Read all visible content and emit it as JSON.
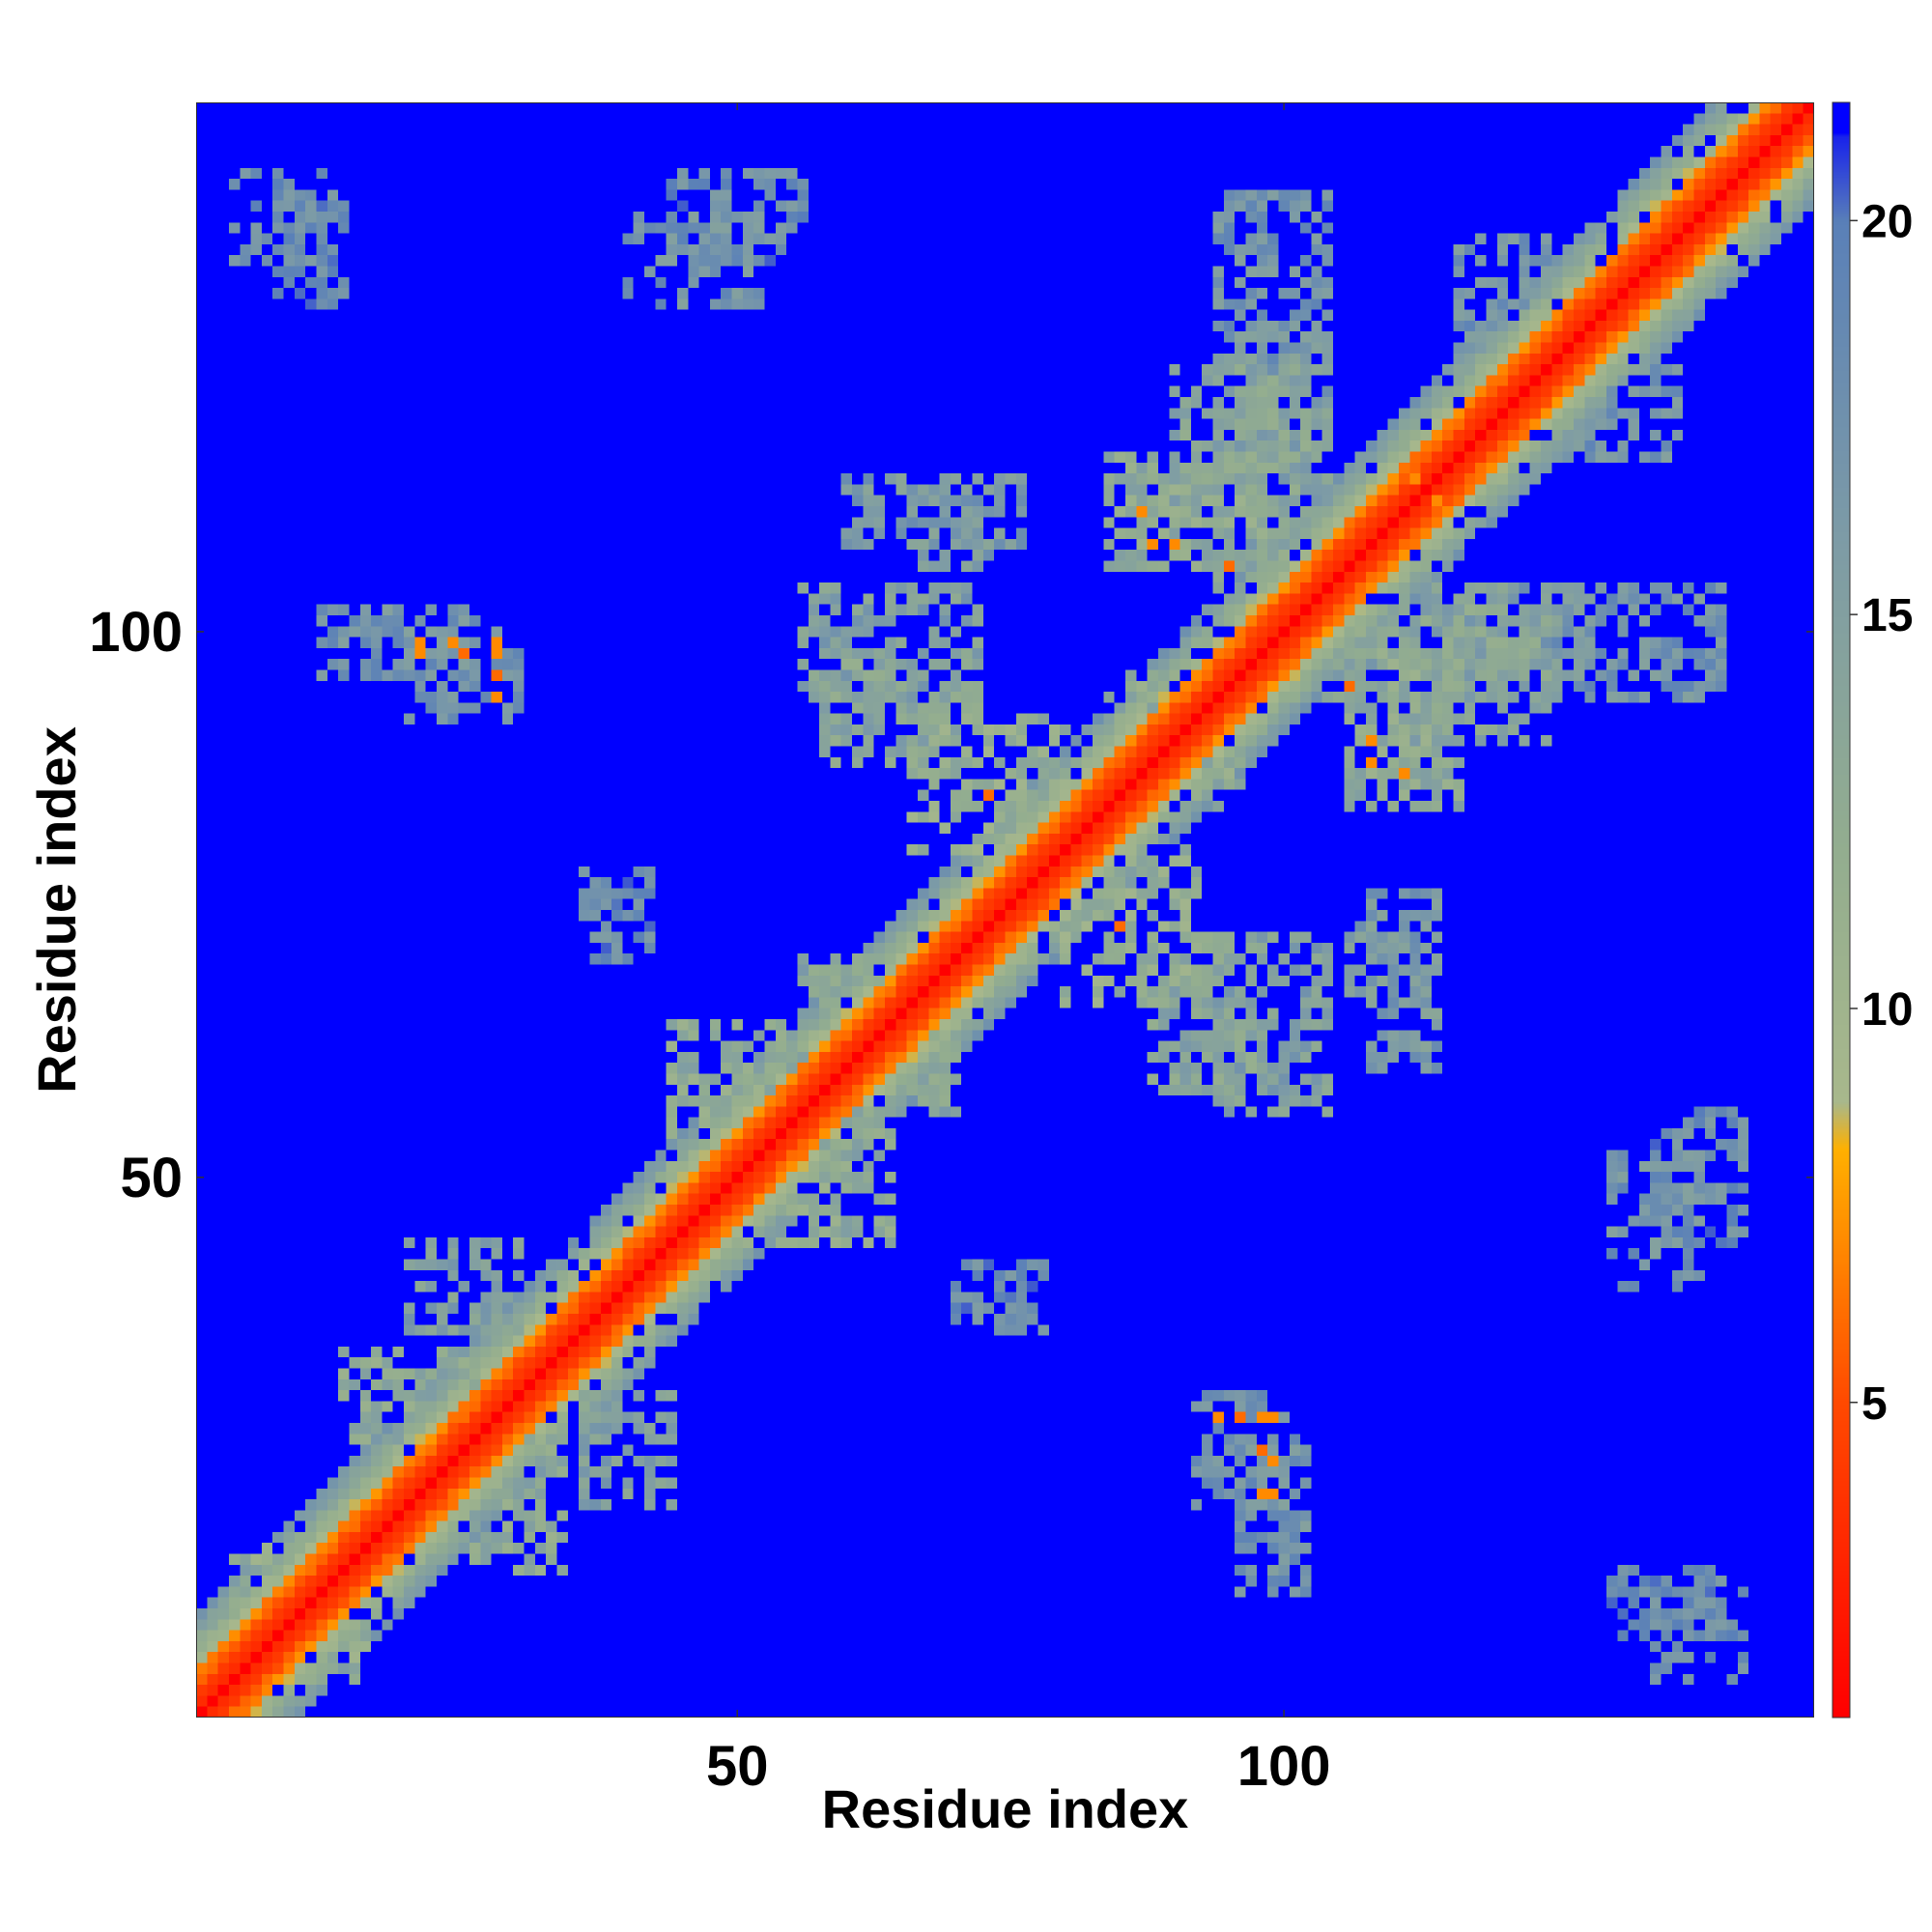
{
  "chart_data": {
    "type": "heatmap",
    "title": "",
    "xlabel": "Residue index",
    "ylabel": "Residue index",
    "n_residues": 148,
    "xlim": [
      1,
      148
    ],
    "ylim": [
      1,
      148
    ],
    "x_ticks": [
      50,
      100
    ],
    "y_ticks": [
      50,
      100
    ],
    "colorbar": {
      "ticks": [
        5,
        10,
        15,
        20
      ],
      "range": [
        1,
        21.5
      ],
      "color_stops": [
        {
          "value": 1,
          "color": "#ff0000"
        },
        {
          "value": 5,
          "color": "#ff4a00"
        },
        {
          "value": 8.2,
          "color": "#ffb000"
        },
        {
          "value": 8.8,
          "color": "#a8b88c"
        },
        {
          "value": 12,
          "color": "#93ad8f"
        },
        {
          "value": 16,
          "color": "#7d9ba6"
        },
        {
          "value": 20,
          "color": "#5a80b8"
        },
        {
          "value": 21.5,
          "color": "#0000ff"
        }
      ]
    },
    "cap_color": "#0000ff",
    "contact_clusters": [
      {
        "x": [
          4,
          12
        ],
        "y": [
          10,
          16
        ],
        "value": 12
      },
      {
        "x": [
          14,
          28
        ],
        "y": [
          26,
          34
        ],
        "value": 13
      },
      {
        "x": [
          20,
          30
        ],
        "y": [
          36,
          44
        ],
        "value": 15
      },
      {
        "x": [
          44,
          58
        ],
        "y": [
          50,
          64
        ],
        "value": 13
      },
      {
        "x": [
          56,
          70
        ],
        "y": [
          60,
          70
        ],
        "value": 14
      },
      {
        "x": [
          66,
          80
        ],
        "y": [
          80,
          92
        ],
        "value": 12
      },
      {
        "x": [
          56,
          72
        ],
        "y": [
          94,
          104
        ],
        "value": 15
      },
      {
        "x": [
          60,
          76
        ],
        "y": [
          108,
          114
        ],
        "value": 16
      },
      {
        "x": [
          84,
          96
        ],
        "y": [
          86,
          94
        ],
        "value": 13
      },
      {
        "x": [
          84,
          100
        ],
        "y": [
          106,
          116
        ],
        "value": 13
      },
      {
        "x": [
          90,
          102
        ],
        "y": [
          112,
          124
        ],
        "value": 14
      },
      {
        "x": [
          94,
          104
        ],
        "y": [
          124,
          140
        ],
        "value": 17
      },
      {
        "x": [
          104,
          122
        ],
        "y": [
          94,
          104
        ],
        "value": 15
      },
      {
        "x": [
          114,
          128
        ],
        "y": [
          96,
          104
        ],
        "value": 16
      },
      {
        "x": [
          116,
          124
        ],
        "y": [
          124,
          136
        ],
        "value": 17
      },
      {
        "x": [
          88,
          98
        ],
        "y": [
          58,
          72
        ],
        "value": 14
      },
      {
        "x": [
          92,
          100
        ],
        "y": [
          20,
          30
        ],
        "value": 17
      },
      {
        "x": [
          130,
          138
        ],
        "y": [
          40,
          52
        ],
        "value": 17
      },
      {
        "x": [
          130,
          140
        ],
        "y": [
          8,
          14
        ],
        "value": 18
      },
      {
        "x": [
          44,
          56
        ],
        "y": [
          134,
          142
        ],
        "value": 18
      },
      {
        "x": [
          4,
          12
        ],
        "y": [
          134,
          142
        ],
        "value": 18
      },
      {
        "x": [
          12,
          26
        ],
        "y": [
          96,
          102
        ],
        "value": 17
      },
      {
        "x": [
          106,
          112
        ],
        "y": [
          66,
          74
        ],
        "value": 16
      },
      {
        "x": [
          70,
          78
        ],
        "y": [
          36,
          42
        ],
        "value": 18
      }
    ],
    "close_contacts": [
      {
        "x": 21,
        "y": 99,
        "value": 7
      },
      {
        "x": 24,
        "y": 99,
        "value": 7
      },
      {
        "x": 28,
        "y": 99,
        "value": 7
      },
      {
        "x": 28,
        "y": 96,
        "value": 6
      },
      {
        "x": 94,
        "y": 28,
        "value": 7
      },
      {
        "x": 98,
        "y": 28,
        "value": 7
      },
      {
        "x": 98,
        "y": 25,
        "value": 6
      },
      {
        "x": 98,
        "y": 21,
        "value": 7
      },
      {
        "x": 88,
        "y": 108,
        "value": 7
      },
      {
        "x": 95,
        "y": 106,
        "value": 6
      },
      {
        "x": 108,
        "y": 90,
        "value": 7
      },
      {
        "x": 111,
        "y": 87,
        "value": 7
      },
      {
        "x": 73,
        "y": 85,
        "value": 6
      },
      {
        "x": 85,
        "y": 73,
        "value": 6
      },
      {
        "x": 112,
        "y": 116,
        "value": 6
      },
      {
        "x": 114,
        "y": 112,
        "value": 7
      }
    ]
  }
}
